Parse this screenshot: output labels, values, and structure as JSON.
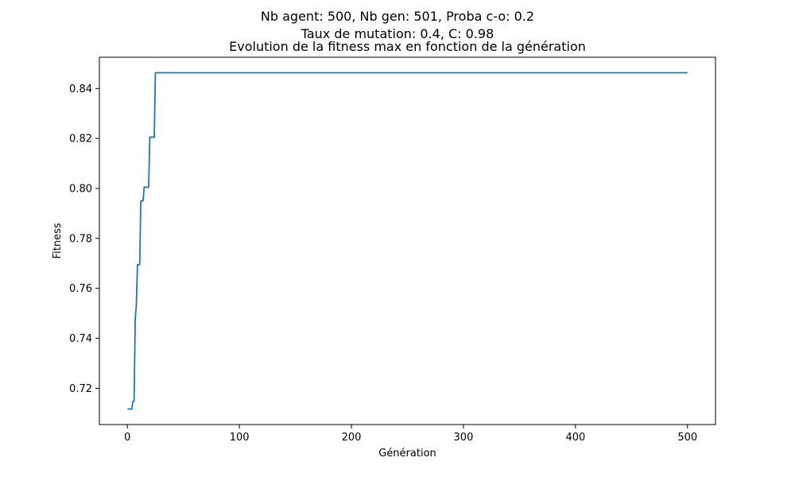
{
  "figure": {
    "suptitle_line1": "Nb agent: 500, Nb gen: 501, Proba c-o: 0.2",
    "suptitle_line2": "Taux de mutation: 0.4, C: 0.98"
  },
  "colors": {
    "line": "#1f77b4",
    "axes": "#000000",
    "background": "#ffffff"
  },
  "chart_data": {
    "type": "line",
    "title": "Evolution de la fitness max en fonction de la génération",
    "xlabel": "Génération",
    "ylabel": "Fitness",
    "xlim": [
      -25,
      525
    ],
    "ylim": [
      0.7055,
      0.8525
    ],
    "grid": false,
    "x_ticks": [
      0,
      100,
      200,
      300,
      400,
      500
    ],
    "x_tick_labels": [
      "0",
      "100",
      "200",
      "300",
      "400",
      "500"
    ],
    "y_ticks": [
      0.72,
      0.74,
      0.76,
      0.78,
      0.8,
      0.82,
      0.84
    ],
    "y_tick_labels": [
      "0.72",
      "0.74",
      "0.76",
      "0.78",
      "0.80",
      "0.82",
      "0.84"
    ],
    "series": [
      {
        "x": [
          0,
          1,
          2,
          3,
          4,
          5,
          6,
          7,
          8,
          9,
          10,
          11,
          12,
          13,
          14,
          15,
          16,
          17,
          18,
          19,
          20,
          21,
          22,
          23,
          24,
          25,
          26,
          100,
          200,
          300,
          400,
          500
        ],
        "y": [
          0.7117,
          0.7117,
          0.7117,
          0.7117,
          0.7117,
          0.7148,
          0.7148,
          0.748,
          0.753,
          0.7695,
          0.7695,
          0.7695,
          0.795,
          0.795,
          0.795,
          0.8005,
          0.8005,
          0.8005,
          0.8005,
          0.8005,
          0.8205,
          0.8205,
          0.8205,
          0.8205,
          0.8205,
          0.8463,
          0.8463,
          0.8463,
          0.8463,
          0.8463,
          0.8463,
          0.8463
        ]
      }
    ]
  }
}
